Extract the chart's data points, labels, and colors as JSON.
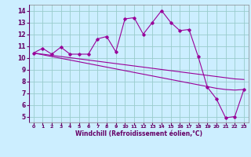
{
  "x": [
    0,
    1,
    2,
    3,
    4,
    5,
    6,
    7,
    8,
    9,
    10,
    11,
    12,
    13,
    14,
    15,
    16,
    17,
    18,
    19,
    20,
    21,
    22,
    23
  ],
  "y_curve": [
    10.4,
    10.8,
    10.3,
    10.9,
    10.3,
    10.3,
    10.3,
    11.6,
    11.8,
    10.5,
    13.3,
    13.4,
    12.0,
    13.0,
    14.0,
    13.0,
    12.3,
    12.4,
    10.1,
    7.5,
    6.5,
    4.9,
    5.0,
    7.3
  ],
  "y_line1": [
    10.4,
    10.25,
    10.1,
    9.95,
    9.8,
    9.65,
    9.5,
    9.35,
    9.2,
    9.05,
    8.9,
    8.75,
    8.6,
    8.45,
    8.3,
    8.15,
    8.0,
    7.85,
    7.7,
    7.55,
    7.4,
    7.3,
    7.25,
    7.3
  ],
  "y_line2": [
    10.4,
    10.3,
    10.2,
    10.1,
    10.0,
    9.9,
    9.8,
    9.7,
    9.6,
    9.5,
    9.4,
    9.3,
    9.2,
    9.1,
    9.0,
    8.9,
    8.8,
    8.7,
    8.6,
    8.5,
    8.4,
    8.3,
    8.2,
    8.15
  ],
  "line_color": "#990099",
  "bg_color": "#cceeff",
  "grid_color": "#99cccc",
  "xlabel": "Windchill (Refroidissement éolien,°C)",
  "xlim": [
    -0.5,
    23.5
  ],
  "ylim": [
    4.5,
    14.5
  ],
  "yticks": [
    5,
    6,
    7,
    8,
    9,
    10,
    11,
    12,
    13,
    14
  ],
  "xticks": [
    0,
    1,
    2,
    3,
    4,
    5,
    6,
    7,
    8,
    9,
    10,
    11,
    12,
    13,
    14,
    15,
    16,
    17,
    18,
    19,
    20,
    21,
    22,
    23
  ]
}
